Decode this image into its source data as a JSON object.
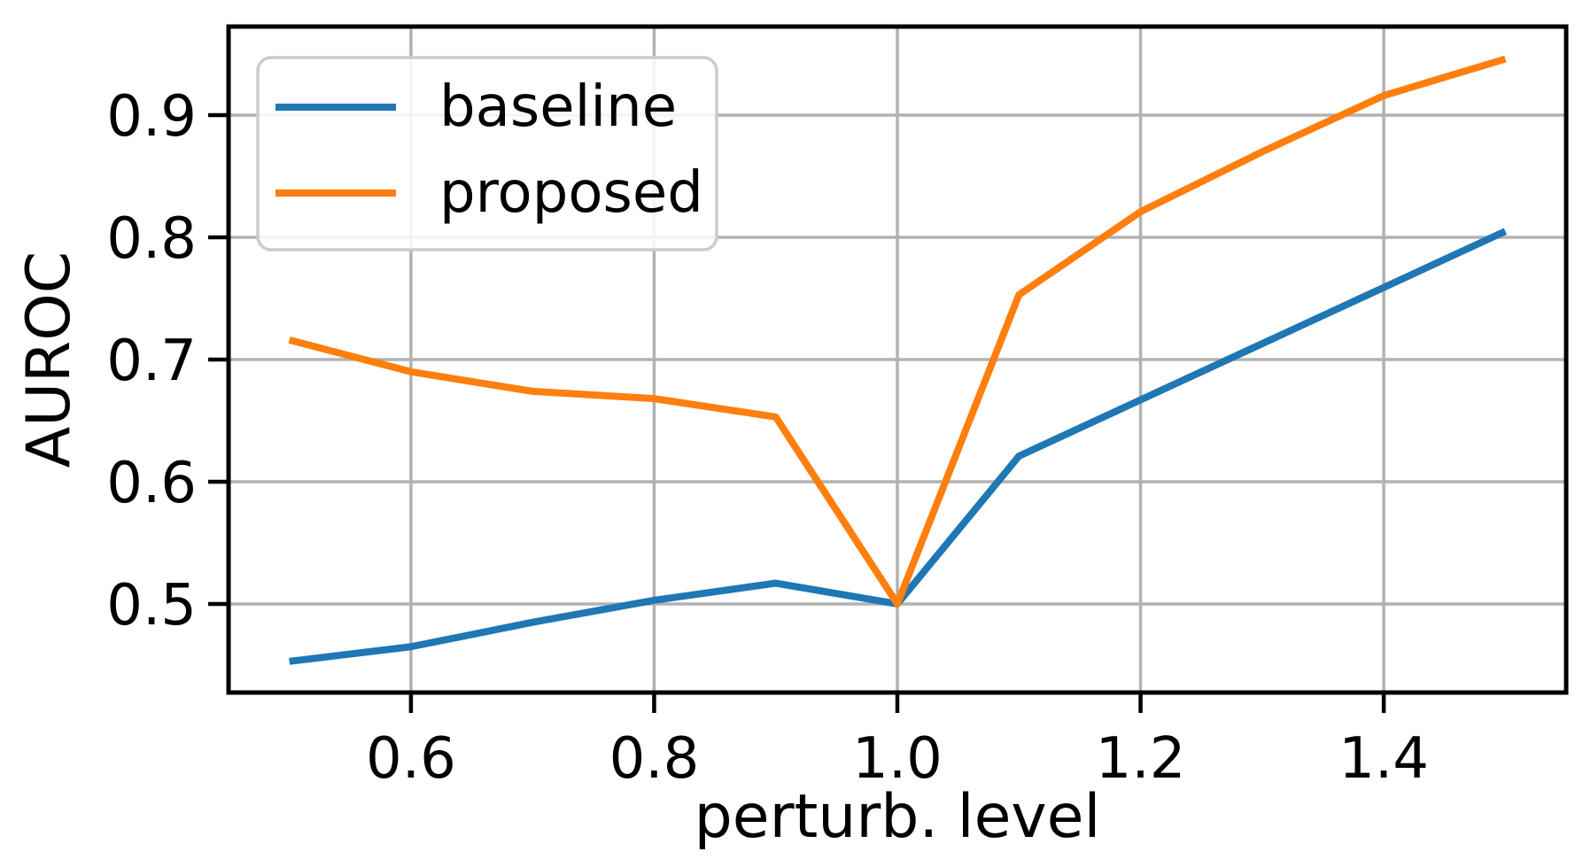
{
  "chart_data": {
    "type": "line",
    "title": "",
    "xlabel": "perturb. level",
    "ylabel": "AUROC",
    "x": [
      0.5,
      0.6,
      0.7,
      0.8,
      0.9,
      1.0,
      1.1,
      1.2,
      1.3,
      1.4,
      1.5
    ],
    "series": [
      {
        "name": "baseline",
        "color": "#1f77b4",
        "values": [
          0.453,
          0.465,
          0.485,
          0.503,
          0.517,
          0.5,
          0.621,
          0.667,
          0.713,
          0.759,
          0.805
        ]
      },
      {
        "name": "proposed",
        "color": "#ff7f0e",
        "values": [
          0.716,
          0.69,
          0.674,
          0.668,
          0.653,
          0.5,
          0.753,
          0.821,
          0.87,
          0.916,
          0.946
        ]
      }
    ],
    "xticks": {
      "values": [
        0.6,
        0.8,
        1.0,
        1.2,
        1.4
      ],
      "labels": [
        "0.6",
        "0.8",
        "1.0",
        "1.2",
        "1.4"
      ]
    },
    "yticks": {
      "values": [
        0.5,
        0.6,
        0.7,
        0.8,
        0.9
      ],
      "labels": [
        "0.5",
        "0.6",
        "0.7",
        "0.8",
        "0.9"
      ]
    },
    "xlim": [
      0.45,
      1.55
    ],
    "ylim": [
      0.4275,
      0.9725
    ],
    "grid": true,
    "legend": {
      "position": "upper left",
      "entries": [
        "baseline",
        "proposed"
      ]
    },
    "colors": {
      "grid": "#b2b2b2",
      "spine": "#000000",
      "text": "#000000",
      "legend_border": "#cccccc",
      "background": "#ffffff"
    }
  }
}
